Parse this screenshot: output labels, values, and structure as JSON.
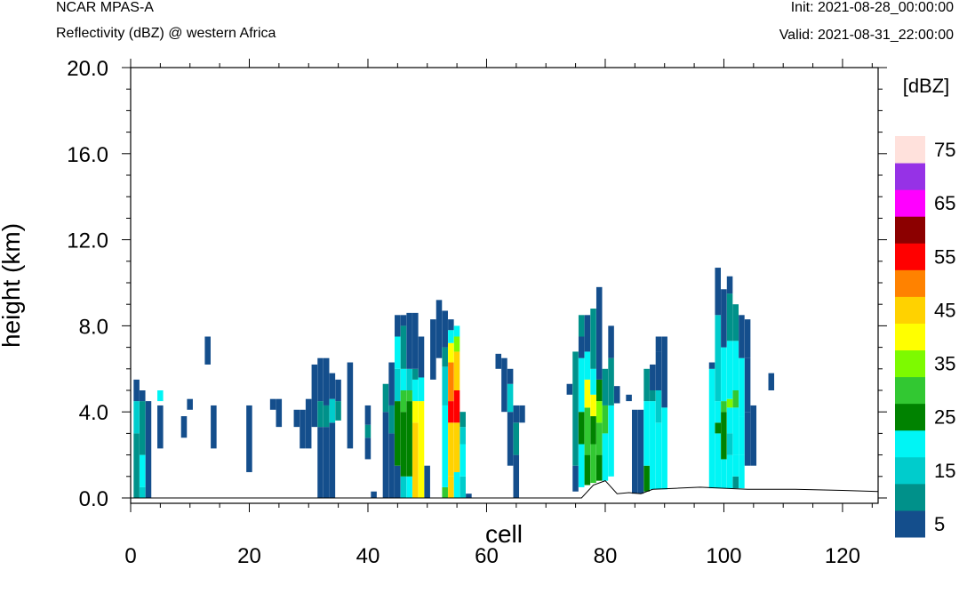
{
  "header": {
    "model": "NCAR MPAS-A",
    "field": "Reflectivity (dBZ) @ western Africa",
    "init": "Init: 2021-08-28_00:00:00",
    "valid": "Valid: 2021-08-31_22:00:00"
  },
  "chart_data": {
    "type": "heatmap",
    "xlabel": "cell",
    "ylabel": "height (km)",
    "xlim": [
      0,
      126
    ],
    "ylim": [
      0,
      20
    ],
    "xticks": [
      0,
      20,
      40,
      60,
      80,
      100,
      120
    ],
    "xtick_labels": [
      "0",
      "20",
      "40",
      "60",
      "80",
      "100",
      "120"
    ],
    "yticks": [
      0,
      4,
      8,
      12,
      16,
      20
    ],
    "ytick_labels": [
      "0.0",
      "4.0",
      "8.0",
      "12.0",
      "16.0",
      "20.0"
    ],
    "colorbar": {
      "title": "[dBZ]",
      "levels": [
        5,
        10,
        15,
        20,
        25,
        30,
        35,
        40,
        45,
        50,
        55,
        60,
        65,
        70,
        75
      ],
      "labels": [
        "5",
        "15",
        "25",
        "35",
        "45",
        "55",
        "65",
        "75"
      ],
      "colors": [
        "#144e8c",
        "#00918a",
        "#00cccc",
        "#00f5f5",
        "#008200",
        "#32c832",
        "#7dfa00",
        "#ffff00",
        "#ffd200",
        "#ff8200",
        "#ff0000",
        "#8c0000",
        "#ff00ff",
        "#9632e6",
        "#ffe1dc"
      ]
    },
    "terrain": [
      [
        0,
        0
      ],
      [
        76,
        0
      ],
      [
        78,
        0.6
      ],
      [
        80,
        0.8
      ],
      [
        82,
        0.2
      ],
      [
        84,
        0.25
      ],
      [
        86,
        0.2
      ],
      [
        88,
        0.4
      ],
      [
        92,
        0.45
      ],
      [
        96,
        0.5
      ],
      [
        100,
        0.45
      ],
      [
        104,
        0.4
      ],
      [
        112,
        0.4
      ],
      [
        120,
        0.35
      ],
      [
        126,
        0.3
      ]
    ],
    "columns": [
      {
        "x": 1,
        "cells": [
          [
            0,
            3,
            2
          ],
          [
            3,
            4.5,
            3
          ],
          [
            4.5,
            5.5,
            1
          ]
        ]
      },
      {
        "x": 2,
        "cells": [
          [
            0,
            0.5,
            3
          ],
          [
            0.5,
            2,
            4
          ],
          [
            2,
            4.5,
            2
          ],
          [
            4.5,
            5,
            1
          ]
        ]
      },
      {
        "x": 3,
        "cells": [
          [
            0,
            4.5,
            1
          ]
        ]
      },
      {
        "x": 5,
        "cells": [
          [
            4.5,
            5,
            4
          ]
        ]
      },
      {
        "x": 5,
        "cells": [
          [
            2.3,
            4.3,
            1
          ]
        ]
      },
      {
        "x": 9,
        "cells": [
          [
            2.8,
            3.8,
            1
          ]
        ]
      },
      {
        "x": 10,
        "cells": [
          [
            4.1,
            4.6,
            1
          ]
        ]
      },
      {
        "x": 13,
        "cells": [
          [
            6.2,
            7.5,
            1
          ]
        ]
      },
      {
        "x": 14,
        "cells": [
          [
            2.3,
            4.3,
            1
          ]
        ]
      },
      {
        "x": 20,
        "cells": [
          [
            1.2,
            4.3,
            1
          ]
        ]
      },
      {
        "x": 24,
        "cells": [
          [
            4.1,
            4.6,
            1
          ]
        ]
      },
      {
        "x": 25,
        "cells": [
          [
            3.3,
            4.6,
            1
          ]
        ]
      },
      {
        "x": 28,
        "cells": [
          [
            3.3,
            4.1,
            1
          ]
        ]
      },
      {
        "x": 29,
        "cells": [
          [
            2.3,
            4.1,
            1
          ]
        ]
      },
      {
        "x": 30,
        "cells": [
          [
            2.3,
            4.6,
            1
          ]
        ]
      },
      {
        "x": 31,
        "cells": [
          [
            3.3,
            6.2,
            1
          ]
        ]
      },
      {
        "x": 32,
        "cells": [
          [
            0,
            3.3,
            1
          ],
          [
            3.3,
            4.5,
            2
          ],
          [
            4.5,
            6.5,
            1
          ]
        ]
      },
      {
        "x": 33,
        "cells": [
          [
            0,
            3.3,
            1
          ],
          [
            3.3,
            4.3,
            2
          ],
          [
            4.3,
            6.5,
            1
          ]
        ]
      },
      {
        "x": 34,
        "cells": [
          [
            0,
            3.5,
            1
          ],
          [
            3.5,
            4.6,
            3
          ],
          [
            4.6,
            5.8,
            1
          ]
        ]
      },
      {
        "x": 35,
        "cells": [
          [
            3.6,
            4.5,
            2
          ],
          [
            4.5,
            5.5,
            1
          ]
        ]
      },
      {
        "x": 37,
        "cells": [
          [
            2.3,
            6.3,
            1
          ]
        ]
      },
      {
        "x": 40,
        "cells": [
          [
            1.8,
            2.8,
            1
          ],
          [
            2.8,
            3.4,
            2
          ],
          [
            3.4,
            4.3,
            1
          ]
        ]
      },
      {
        "x": 41,
        "cells": [
          [
            0,
            0.3,
            1
          ]
        ]
      },
      {
        "x": 43,
        "cells": [
          [
            0,
            4,
            1
          ],
          [
            4,
            5.3,
            2
          ]
        ]
      },
      {
        "x": 44,
        "cells": [
          [
            0,
            3,
            1
          ],
          [
            3,
            4.3,
            2
          ],
          [
            4.3,
            6.3,
            1
          ]
        ]
      },
      {
        "x": 45,
        "cells": [
          [
            0,
            1.5,
            1
          ],
          [
            1.5,
            4.5,
            5
          ],
          [
            4.5,
            6,
            3
          ],
          [
            6,
            7.5,
            4
          ],
          [
            7.5,
            8.5,
            1
          ]
        ]
      },
      {
        "x": 46,
        "cells": [
          [
            0,
            1,
            3
          ],
          [
            1,
            4,
            5
          ],
          [
            4,
            5,
            6
          ],
          [
            5,
            6,
            4
          ],
          [
            6,
            8,
            2
          ],
          [
            8,
            8.5,
            1
          ]
        ]
      },
      {
        "x": 47,
        "cells": [
          [
            0,
            1,
            4
          ],
          [
            1,
            4.5,
            5
          ],
          [
            4.5,
            5,
            6
          ],
          [
            5,
            6,
            3
          ],
          [
            6,
            8.6,
            1
          ]
        ]
      },
      {
        "x": 48,
        "cells": [
          [
            0,
            3.5,
            9
          ],
          [
            3.5,
            4.5,
            8
          ],
          [
            4.5,
            5.5,
            4
          ],
          [
            5.5,
            6,
            2
          ],
          [
            6,
            8.6,
            1
          ]
        ]
      },
      {
        "x": 49,
        "cells": [
          [
            0,
            4.5,
            8
          ],
          [
            4.5,
            5.6,
            4
          ],
          [
            5.6,
            7.5,
            1
          ]
        ]
      },
      {
        "x": 50,
        "cells": [
          [
            0,
            1.5,
            1
          ]
        ]
      },
      {
        "x": 51,
        "cells": [
          [
            5.5,
            8.3,
            1
          ]
        ]
      },
      {
        "x": 52,
        "cells": [
          [
            6.5,
            9.2,
            1
          ]
        ]
      },
      {
        "x": 53,
        "cells": [
          [
            0,
            0.5,
            6
          ],
          [
            0.5,
            4.3,
            4
          ],
          [
            4.3,
            6.1,
            3
          ],
          [
            6.1,
            7,
            2
          ],
          [
            7,
            8.7,
            1
          ]
        ]
      },
      {
        "x": 54,
        "cells": [
          [
            0,
            1,
            9
          ],
          [
            1,
            3.5,
            9
          ],
          [
            3.5,
            4.5,
            11
          ],
          [
            4.5,
            6.3,
            10
          ],
          [
            6.3,
            7.2,
            8
          ],
          [
            7.2,
            7.8,
            4
          ],
          [
            7.8,
            8.3,
            1
          ]
        ]
      },
      {
        "x": 55,
        "cells": [
          [
            0,
            1.2,
            4
          ],
          [
            1.2,
            3.5,
            9
          ],
          [
            3.5,
            5,
            11
          ],
          [
            5,
            6.8,
            9
          ],
          [
            6.8,
            7.5,
            7
          ],
          [
            7.5,
            8,
            4
          ]
        ]
      },
      {
        "x": 56,
        "cells": [
          [
            0,
            1,
            3
          ],
          [
            1,
            2.5,
            4
          ],
          [
            2.5,
            3.3,
            3
          ],
          [
            3.3,
            4,
            2
          ]
        ]
      },
      {
        "x": 57,
        "cells": [
          [
            0,
            0.2,
            1
          ]
        ]
      },
      {
        "x": 62,
        "cells": [
          [
            6,
            6.7,
            1
          ]
        ]
      },
      {
        "x": 63,
        "cells": [
          [
            4,
            6.5,
            1
          ]
        ]
      },
      {
        "x": 64,
        "cells": [
          [
            1.5,
            4,
            1
          ],
          [
            4,
            5.3,
            3
          ],
          [
            5.3,
            6,
            1
          ]
        ]
      },
      {
        "x": 65,
        "cells": [
          [
            0,
            2,
            1
          ],
          [
            2,
            3.5,
            2
          ],
          [
            3.5,
            4.3,
            1
          ]
        ]
      },
      {
        "x": 66,
        "cells": [
          [
            3.5,
            4.3,
            1
          ]
        ]
      },
      {
        "x": 74,
        "cells": [
          [
            4.8,
            5.3,
            1
          ]
        ]
      },
      {
        "x": 75,
        "cells": [
          [
            0.3,
            1.5,
            1
          ],
          [
            1.5,
            6.8,
            2
          ]
        ]
      },
      {
        "x": 76,
        "cells": [
          [
            0.5,
            2.5,
            4
          ],
          [
            2.5,
            4,
            5
          ],
          [
            4,
            6.5,
            4
          ],
          [
            6.5,
            7.5,
            1
          ],
          [
            7.5,
            8.5,
            2
          ]
        ]
      },
      {
        "x": 77,
        "cells": [
          [
            0.6,
            2,
            5
          ],
          [
            2,
            4.2,
            6
          ],
          [
            4.2,
            5.5,
            8
          ],
          [
            5.5,
            6.8,
            4
          ],
          [
            6.8,
            8.5,
            1
          ]
        ]
      },
      {
        "x": 78,
        "cells": [
          [
            0.7,
            2.5,
            6
          ],
          [
            2.5,
            3.8,
            5
          ],
          [
            3.8,
            4.8,
            8
          ],
          [
            4.8,
            6,
            4
          ],
          [
            6,
            8.8,
            2
          ]
        ]
      },
      {
        "x": 79,
        "cells": [
          [
            0.8,
            2,
            5
          ],
          [
            2,
            3.5,
            6
          ],
          [
            3.5,
            4.5,
            7
          ],
          [
            4.5,
            5.5,
            5
          ],
          [
            5.5,
            9.8,
            1
          ]
        ]
      },
      {
        "x": 80,
        "cells": [
          [
            0.8,
            3,
            4
          ],
          [
            3,
            4.3,
            6
          ],
          [
            4.3,
            6,
            2
          ]
        ]
      },
      {
        "x": 81,
        "cells": [
          [
            1,
            4.3,
            4
          ],
          [
            4.3,
            6.5,
            2
          ],
          [
            6.5,
            8,
            1
          ]
        ]
      },
      {
        "x": 82,
        "cells": [
          [
            4.4,
            5.2,
            1
          ]
        ]
      },
      {
        "x": 84,
        "cells": [
          [
            4.5,
            4.8,
            1
          ]
        ]
      },
      {
        "x": 85,
        "cells": [
          [
            0.2,
            4.1,
            1
          ]
        ]
      },
      {
        "x": 86,
        "cells": [
          [
            0.2,
            4.1,
            1
          ]
        ]
      },
      {
        "x": 87,
        "cells": [
          [
            0.3,
            1.5,
            5
          ],
          [
            1.5,
            4.5,
            4
          ],
          [
            4.5,
            6,
            2
          ]
        ]
      },
      {
        "x": 88,
        "cells": [
          [
            0.4,
            4.5,
            4
          ],
          [
            4.5,
            5,
            2
          ],
          [
            5,
            6.2,
            1
          ]
        ]
      },
      {
        "x": 89,
        "cells": [
          [
            0.4,
            3.5,
            4
          ],
          [
            3.5,
            5,
            3
          ],
          [
            5,
            6.8,
            1
          ],
          [
            6.8,
            7.5,
            1
          ]
        ]
      },
      {
        "x": 90,
        "cells": [
          [
            0.4,
            4.2,
            4
          ],
          [
            4.2,
            7.5,
            1
          ]
        ]
      },
      {
        "x": 98,
        "cells": [
          [
            0.45,
            6,
            4
          ],
          [
            6,
            6.3,
            1
          ]
        ]
      },
      {
        "x": 99,
        "cells": [
          [
            0.45,
            3,
            4
          ],
          [
            3,
            3.5,
            5
          ],
          [
            3.5,
            4.5,
            4
          ],
          [
            4.5,
            8.5,
            3
          ],
          [
            8.5,
            10.7,
            1
          ]
        ]
      },
      {
        "x": 100,
        "cells": [
          [
            0.45,
            1.8,
            4
          ],
          [
            1.8,
            4,
            5
          ],
          [
            4,
            4.5,
            6
          ],
          [
            4.5,
            7,
            4
          ],
          [
            7,
            9.7,
            1
          ]
        ]
      },
      {
        "x": 101,
        "cells": [
          [
            0.45,
            2,
            4
          ],
          [
            2,
            3,
            3
          ],
          [
            3,
            4.2,
            4
          ],
          [
            4.2,
            4.6,
            7
          ],
          [
            4.6,
            7.3,
            4
          ],
          [
            7.3,
            9.5,
            2
          ],
          [
            9.5,
            10.3,
            1
          ]
        ]
      },
      {
        "x": 102,
        "cells": [
          [
            0.45,
            1,
            2
          ],
          [
            1,
            2,
            4
          ],
          [
            2,
            4.2,
            4
          ],
          [
            4.2,
            5,
            6
          ],
          [
            5,
            7.3,
            4
          ],
          [
            7.3,
            9,
            2
          ]
        ]
      },
      {
        "x": 103,
        "cells": [
          [
            0.45,
            2,
            4
          ],
          [
            2,
            3.8,
            4
          ],
          [
            3.8,
            6.5,
            4
          ],
          [
            6.5,
            8.5,
            1
          ]
        ]
      },
      {
        "x": 104,
        "cells": [
          [
            1.5,
            4,
            1
          ],
          [
            4,
            6.5,
            1
          ],
          [
            6.5,
            8.3,
            1
          ]
        ]
      },
      {
        "x": 105,
        "cells": [
          [
            1.5,
            4.3,
            1
          ]
        ]
      },
      {
        "x": 108,
        "cells": [
          [
            5,
            5.8,
            1
          ]
        ]
      }
    ]
  }
}
